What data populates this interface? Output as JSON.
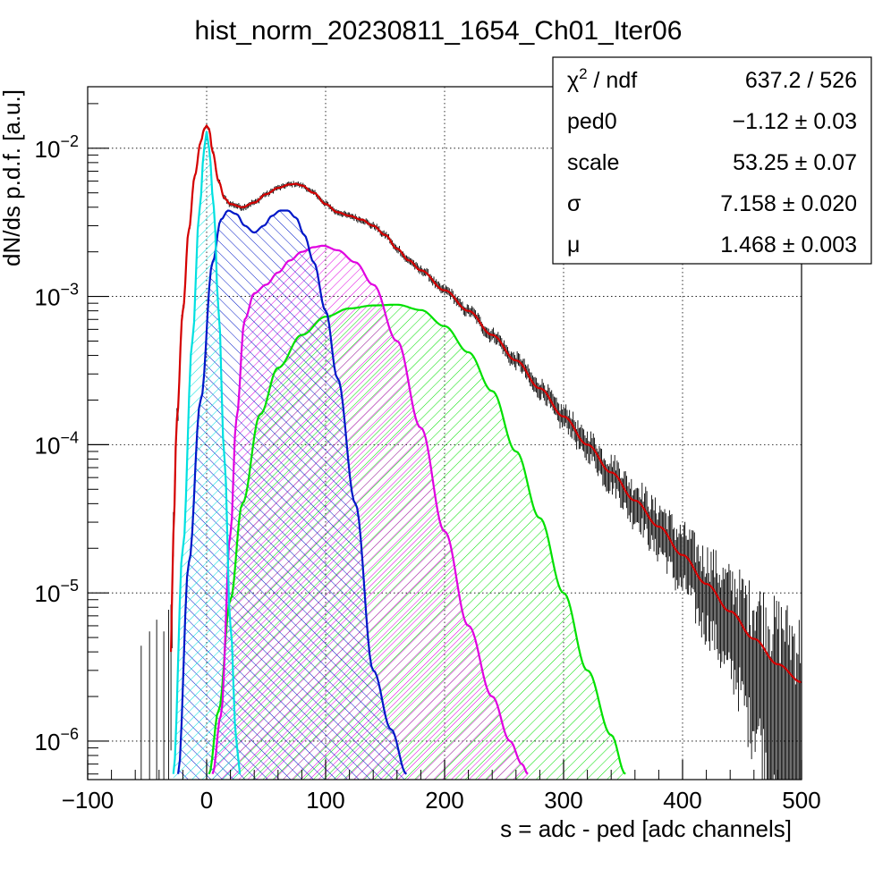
{
  "chart_data": {
    "type": "line",
    "title": "hist_norm_20230811_1654_Ch01_Iter06",
    "xlabel": "s = adc - ped [adc channels]",
    "ylabel": "dN/ds p.d.f. [a.u.]",
    "xlim": [
      -100,
      500
    ],
    "ylim": [
      5.5e-07,
      0.026
    ],
    "yscale": "log",
    "grid": true,
    "x_ticks": [
      -100,
      0,
      100,
      200,
      300,
      400,
      500
    ],
    "x_tick_labels": [
      "−100",
      "0",
      "100",
      "200",
      "300",
      "400",
      "500"
    ],
    "y_ticks": [
      {
        "value": 1e-06,
        "base": "10",
        "exp": "−6"
      },
      {
        "value": 1e-05,
        "base": "10",
        "exp": "−5"
      },
      {
        "value": 0.0001,
        "base": "10",
        "exp": "−4"
      },
      {
        "value": 0.001,
        "base": "10",
        "exp": "−3"
      },
      {
        "value": 0.01,
        "base": "10",
        "exp": "−2"
      }
    ],
    "colors": {
      "total_fit": "#d40000",
      "pedestal": "#00e0e0",
      "pe1": "#0018c8",
      "pe2": "#e000e0",
      "pe3": "#00e000",
      "data": "#000000"
    },
    "components": [
      {
        "id": "pedestal",
        "color": "#00e0e0",
        "x": [
          -28,
          -20,
          -12,
          -6,
          -2,
          0,
          2,
          6,
          10,
          15,
          20,
          25,
          28
        ],
        "y": [
          6e-07,
          2e-05,
          0.0005,
          0.0038,
          0.01,
          0.013,
          0.01,
          0.004,
          0.0008,
          8e-05,
          6e-06,
          1e-06,
          6e-07
        ]
      },
      {
        "id": "pe1",
        "color": "#0018c8",
        "x": [
          -24,
          -15,
          -5,
          5,
          12,
          18,
          25,
          32,
          40,
          48,
          55,
          62,
          68,
          75,
          82,
          90,
          100,
          110,
          125,
          140,
          155,
          168
        ],
        "y": [
          6e-07,
          1.6e-05,
          0.0002,
          0.0017,
          0.0033,
          0.0038,
          0.0036,
          0.003,
          0.0027,
          0.003,
          0.0035,
          0.0038,
          0.0038,
          0.0034,
          0.0026,
          0.0017,
          0.0008,
          0.00028,
          4e-05,
          3e-06,
          1.2e-06,
          6e-07
        ]
      },
      {
        "id": "pe2",
        "color": "#e000e0",
        "x": [
          5,
          12,
          20,
          25,
          32,
          40,
          50,
          60,
          70,
          80,
          90,
          98,
          110,
          125,
          140,
          160,
          180,
          200,
          220,
          240,
          255,
          265,
          270
        ],
        "y": [
          6e-07,
          1.5e-06,
          2.5e-05,
          0.00015,
          0.0007,
          0.00105,
          0.0012,
          0.00145,
          0.00175,
          0.002,
          0.00215,
          0.0022,
          0.00205,
          0.0017,
          0.0012,
          0.0005,
          0.00013,
          2.6e-05,
          6e-06,
          2e-06,
          1e-06,
          7e-07,
          6e-07
        ]
      },
      {
        "id": "pe3",
        "color": "#00e000",
        "x": [
          2,
          10,
          20,
          30,
          45,
          60,
          80,
          100,
          120,
          140,
          160,
          180,
          200,
          220,
          240,
          260,
          280,
          300,
          320,
          340,
          352
        ],
        "y": [
          6e-07,
          1.6e-06,
          9e-06,
          4e-05,
          0.00016,
          0.00033,
          0.00055,
          0.00073,
          0.00083,
          0.00087,
          0.00088,
          0.00081,
          0.00063,
          0.00042,
          0.00023,
          9e-05,
          3.2e-05,
          1e-05,
          3e-06,
          1.1e-06,
          6e-07
        ]
      }
    ],
    "total_fit": {
      "color": "#d40000",
      "x": [
        -30,
        -28,
        -25,
        -20,
        -15,
        -10,
        -5,
        -2,
        0,
        2,
        5,
        10,
        15,
        20,
        30,
        40,
        50,
        60,
        70,
        75,
        80,
        90,
        100,
        110,
        120,
        130,
        140,
        150,
        160,
        170,
        180,
        200,
        220,
        240,
        260,
        280,
        300,
        320,
        340,
        360,
        380,
        400,
        420,
        440,
        460,
        480,
        500
      ],
      "y": [
        4e-06,
        2.5e-05,
        0.00015,
        0.0008,
        0.0028,
        0.0065,
        0.011,
        0.0135,
        0.0142,
        0.0135,
        0.0095,
        0.006,
        0.0046,
        0.0042,
        0.004,
        0.0043,
        0.0049,
        0.0054,
        0.0057,
        0.00575,
        0.0056,
        0.005,
        0.0042,
        0.0037,
        0.0035,
        0.0033,
        0.003,
        0.0026,
        0.0021,
        0.00175,
        0.0015,
        0.0011,
        0.0008,
        0.00055,
        0.00037,
        0.00024,
        0.000155,
        0.0001,
        6.5e-05,
        4.2e-05,
        2.8e-05,
        1.8e-05,
        1.15e-05,
        7.5e-06,
        4.9e-06,
        3.3e-06,
        2.5e-06
      ]
    },
    "legend": "none"
  },
  "stats_box": {
    "placement": "top-right",
    "rows": [
      {
        "label_main": "χ",
        "label_sup": "2",
        "label_tail": " / ndf",
        "value": "637.2 / 526"
      },
      {
        "label_main": "ped0",
        "label_sup": "",
        "label_tail": "",
        "value": "−1.12 ± 0.03"
      },
      {
        "label_main": "scale",
        "label_sup": "",
        "label_tail": "",
        "value": "53.25 ± 0.07"
      },
      {
        "label_main": "σ",
        "label_sup": "",
        "label_tail": "",
        "value": "7.158 ± 0.020"
      },
      {
        "label_main": "μ",
        "label_sup": "",
        "label_tail": "",
        "value": "1.468 ± 0.003"
      }
    ]
  }
}
